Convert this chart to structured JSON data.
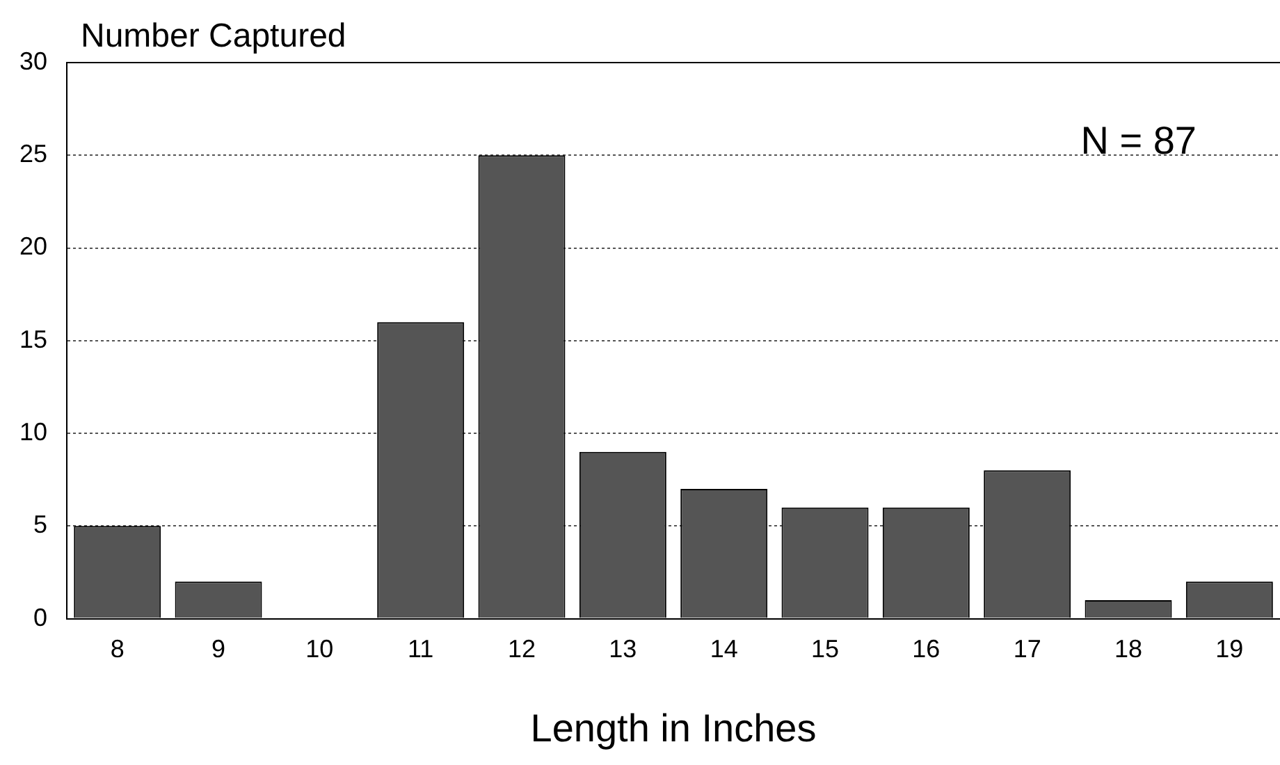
{
  "chart_data": {
    "type": "bar",
    "ylabel": "Number Captured",
    "xlabel": "Length in Inches",
    "categories": [
      "8",
      "9",
      "10",
      "11",
      "12",
      "13",
      "14",
      "15",
      "16",
      "17",
      "18",
      "19"
    ],
    "values": [
      5,
      2,
      0,
      16,
      25,
      9,
      7,
      6,
      6,
      8,
      1,
      2
    ],
    "color": "#555555",
    "ylim": [
      0,
      30
    ],
    "yticks": [
      0,
      5,
      10,
      15,
      20,
      25,
      30
    ],
    "grid": "y",
    "annotations": [
      "N = 87"
    ]
  }
}
